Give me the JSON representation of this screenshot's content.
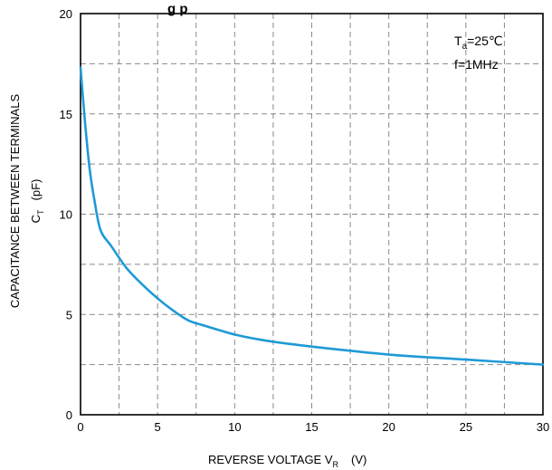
{
  "chart_data": {
    "type": "line",
    "title_fragment": "g   p",
    "xlabel": {
      "main": "REVERSE VOLTAGE   V",
      "sub": "R",
      "unit": "(V)"
    },
    "ylabel": {
      "line1": "CAPACITANCE BETWEEN TERMINALS",
      "main": "C",
      "sub": "T",
      "unit": "(pF)"
    },
    "xlim": [
      0,
      30
    ],
    "ylim": [
      0,
      20
    ],
    "x_ticks": [
      0,
      5,
      10,
      15,
      20,
      25,
      30
    ],
    "y_ticks": [
      0,
      5,
      10,
      15,
      20
    ],
    "x_tick_labels": [
      "0",
      "5",
      "10",
      "15",
      "20",
      "25",
      "30"
    ],
    "y_tick_labels": [
      "0",
      "5",
      "10",
      "15",
      "20"
    ],
    "grid": {
      "dashed": true,
      "x_step": 2.5,
      "y_step": 2.5
    },
    "conditions": {
      "temp_main": "T",
      "temp_sub": "a",
      "temp_value": "=25℃",
      "freq": "f=1MHz"
    },
    "series": [
      {
        "color": "#1f9ad6",
        "x": [
          0,
          0.3,
          0.6,
          0.9,
          1.3,
          2,
          3,
          4,
          5,
          6,
          7,
          8,
          10,
          12,
          15,
          20,
          25,
          30
        ],
        "y": [
          17.3,
          14.5,
          12.2,
          10.7,
          9.2,
          8.4,
          7.3,
          6.5,
          5.8,
          5.2,
          4.7,
          4.45,
          4.0,
          3.7,
          3.4,
          3.0,
          2.75,
          2.5
        ]
      }
    ]
  }
}
